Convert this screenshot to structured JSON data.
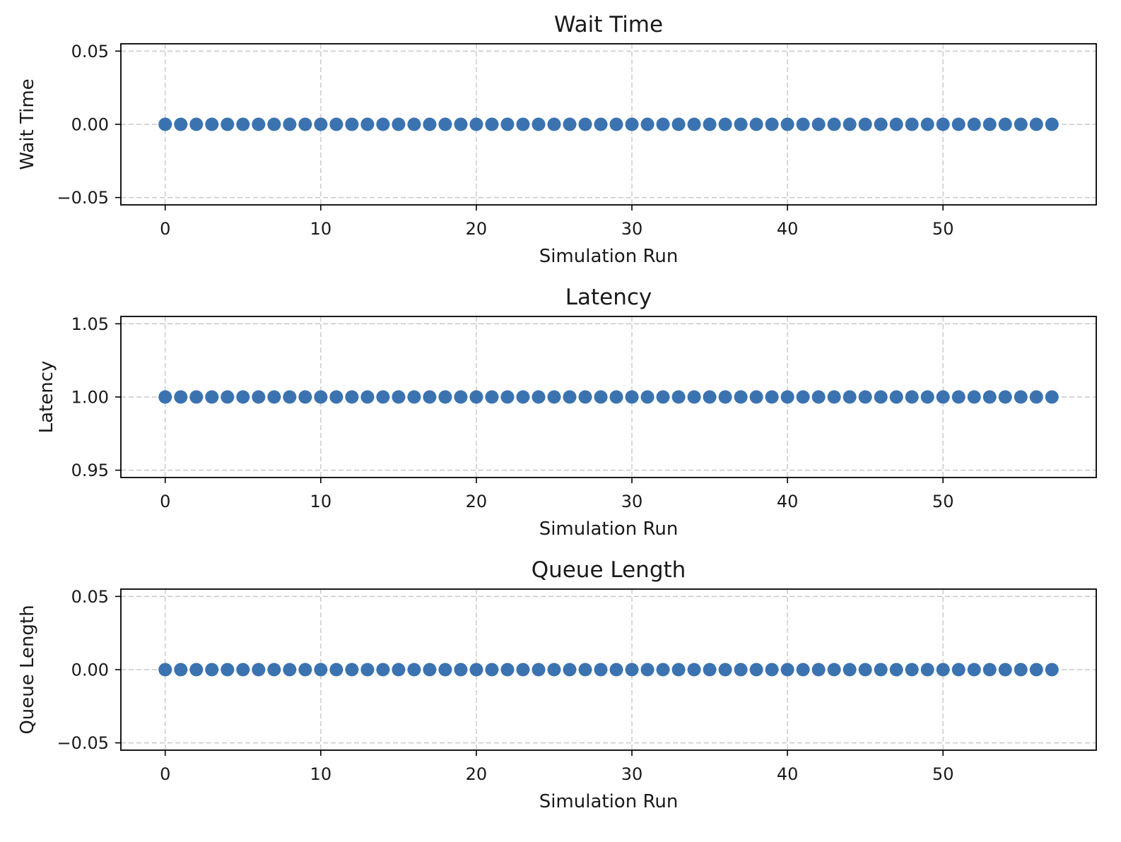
{
  "chart_data": [
    {
      "type": "scatter",
      "title": "Wait Time",
      "xlabel": "Simulation Run",
      "ylabel": "Wait Time",
      "xlim": [
        -2.85,
        59.85
      ],
      "ylim": [
        -0.055,
        0.055
      ],
      "xticks": [
        0,
        10,
        20,
        30,
        40,
        50
      ],
      "yticks": [
        -0.05,
        0.0,
        0.05
      ],
      "ytick_labels": [
        "−0.05",
        "0.00",
        "0.05"
      ],
      "grid": true,
      "color": "#3b73b0",
      "x": [
        0,
        1,
        2,
        3,
        4,
        5,
        6,
        7,
        8,
        9,
        10,
        11,
        12,
        13,
        14,
        15,
        16,
        17,
        18,
        19,
        20,
        21,
        22,
        23,
        24,
        25,
        26,
        27,
        28,
        29,
        30,
        31,
        32,
        33,
        34,
        35,
        36,
        37,
        38,
        39,
        40,
        41,
        42,
        43,
        44,
        45,
        46,
        47,
        48,
        49,
        50,
        51,
        52,
        53,
        54,
        55,
        56,
        57
      ],
      "y": [
        0,
        0,
        0,
        0,
        0,
        0,
        0,
        0,
        0,
        0,
        0,
        0,
        0,
        0,
        0,
        0,
        0,
        0,
        0,
        0,
        0,
        0,
        0,
        0,
        0,
        0,
        0,
        0,
        0,
        0,
        0,
        0,
        0,
        0,
        0,
        0,
        0,
        0,
        0,
        0,
        0,
        0,
        0,
        0,
        0,
        0,
        0,
        0,
        0,
        0,
        0,
        0,
        0,
        0,
        0,
        0,
        0,
        0
      ]
    },
    {
      "type": "scatter",
      "title": "Latency",
      "xlabel": "Simulation Run",
      "ylabel": "Latency",
      "xlim": [
        -2.85,
        59.85
      ],
      "ylim": [
        0.945,
        1.055
      ],
      "xticks": [
        0,
        10,
        20,
        30,
        40,
        50
      ],
      "yticks": [
        0.95,
        1.0,
        1.05
      ],
      "ytick_labels": [
        "0.95",
        "1.00",
        "1.05"
      ],
      "grid": true,
      "color": "#3b73b0",
      "x": [
        0,
        1,
        2,
        3,
        4,
        5,
        6,
        7,
        8,
        9,
        10,
        11,
        12,
        13,
        14,
        15,
        16,
        17,
        18,
        19,
        20,
        21,
        22,
        23,
        24,
        25,
        26,
        27,
        28,
        29,
        30,
        31,
        32,
        33,
        34,
        35,
        36,
        37,
        38,
        39,
        40,
        41,
        42,
        43,
        44,
        45,
        46,
        47,
        48,
        49,
        50,
        51,
        52,
        53,
        54,
        55,
        56,
        57
      ],
      "y": [
        1,
        1,
        1,
        1,
        1,
        1,
        1,
        1,
        1,
        1,
        1,
        1,
        1,
        1,
        1,
        1,
        1,
        1,
        1,
        1,
        1,
        1,
        1,
        1,
        1,
        1,
        1,
        1,
        1,
        1,
        1,
        1,
        1,
        1,
        1,
        1,
        1,
        1,
        1,
        1,
        1,
        1,
        1,
        1,
        1,
        1,
        1,
        1,
        1,
        1,
        1,
        1,
        1,
        1,
        1,
        1,
        1,
        1
      ]
    },
    {
      "type": "scatter",
      "title": "Queue Length",
      "xlabel": "Simulation Run",
      "ylabel": "Queue Length",
      "xlim": [
        -2.85,
        59.85
      ],
      "ylim": [
        -0.055,
        0.055
      ],
      "xticks": [
        0,
        10,
        20,
        30,
        40,
        50
      ],
      "yticks": [
        -0.05,
        0.0,
        0.05
      ],
      "ytick_labels": [
        "−0.05",
        "0.00",
        "0.05"
      ],
      "grid": true,
      "color": "#3b73b0",
      "x": [
        0,
        1,
        2,
        3,
        4,
        5,
        6,
        7,
        8,
        9,
        10,
        11,
        12,
        13,
        14,
        15,
        16,
        17,
        18,
        19,
        20,
        21,
        22,
        23,
        24,
        25,
        26,
        27,
        28,
        29,
        30,
        31,
        32,
        33,
        34,
        35,
        36,
        37,
        38,
        39,
        40,
        41,
        42,
        43,
        44,
        45,
        46,
        47,
        48,
        49,
        50,
        51,
        52,
        53,
        54,
        55,
        56,
        57
      ],
      "y": [
        0,
        0,
        0,
        0,
        0,
        0,
        0,
        0,
        0,
        0,
        0,
        0,
        0,
        0,
        0,
        0,
        0,
        0,
        0,
        0,
        0,
        0,
        0,
        0,
        0,
        0,
        0,
        0,
        0,
        0,
        0,
        0,
        0,
        0,
        0,
        0,
        0,
        0,
        0,
        0,
        0,
        0,
        0,
        0,
        0,
        0,
        0,
        0,
        0,
        0,
        0,
        0,
        0,
        0,
        0,
        0,
        0,
        0
      ]
    }
  ]
}
